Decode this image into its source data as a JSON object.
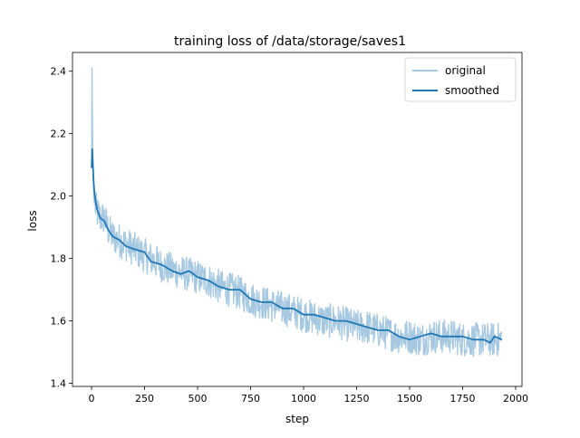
{
  "chart_data": {
    "type": "line",
    "title": "training loss of /data/storage/saves1",
    "xlabel": "step",
    "ylabel": "loss",
    "xlim": [
      -90,
      2030
    ],
    "ylim": [
      1.39,
      2.46
    ],
    "xticks": [
      0,
      250,
      500,
      750,
      1000,
      1250,
      1500,
      1750,
      2000
    ],
    "yticks": [
      1.4,
      1.6,
      1.8,
      2.0,
      2.2,
      2.4
    ],
    "ytick_labels": [
      "1.4",
      "1.6",
      "1.8",
      "2.0",
      "2.2",
      "2.4"
    ],
    "grid": false,
    "legend_position": "top-right",
    "series": [
      {
        "name": "original",
        "color": "#a6c8e0",
        "style": "noisy raw values",
        "points": [
          [
            0,
            2.1
          ],
          [
            2,
            2.41
          ],
          [
            5,
            2.15
          ],
          [
            8,
            2.05
          ],
          [
            12,
            1.98
          ],
          [
            25,
            1.95
          ],
          [
            40,
            1.93
          ],
          [
            60,
            1.93
          ],
          [
            80,
            1.89
          ],
          [
            100,
            1.87
          ],
          [
            150,
            1.85
          ],
          [
            200,
            1.83
          ],
          [
            250,
            1.81
          ],
          [
            300,
            1.79
          ],
          [
            350,
            1.77
          ],
          [
            400,
            1.76
          ],
          [
            450,
            1.75
          ],
          [
            500,
            1.74
          ],
          [
            550,
            1.73
          ],
          [
            600,
            1.71
          ],
          [
            650,
            1.7
          ],
          [
            700,
            1.69
          ],
          [
            750,
            1.67
          ],
          [
            800,
            1.66
          ],
          [
            850,
            1.65
          ],
          [
            900,
            1.64
          ],
          [
            950,
            1.63
          ],
          [
            1000,
            1.62
          ],
          [
            1050,
            1.61
          ],
          [
            1100,
            1.6
          ],
          [
            1150,
            1.6
          ],
          [
            1200,
            1.59
          ],
          [
            1250,
            1.58
          ],
          [
            1300,
            1.58
          ],
          [
            1350,
            1.57
          ],
          [
            1400,
            1.56
          ],
          [
            1450,
            1.55
          ],
          [
            1500,
            1.55
          ],
          [
            1550,
            1.54
          ],
          [
            1600,
            1.55
          ],
          [
            1650,
            1.55
          ],
          [
            1700,
            1.55
          ],
          [
            1750,
            1.54
          ],
          [
            1800,
            1.54
          ],
          [
            1850,
            1.54
          ],
          [
            1900,
            1.54
          ],
          [
            1935,
            1.54
          ]
        ],
        "noise_amplitude": 0.055
      },
      {
        "name": "smoothed",
        "color": "#1f77b4",
        "points": [
          [
            0,
            2.09
          ],
          [
            3,
            2.15
          ],
          [
            6,
            2.1
          ],
          [
            10,
            2.04
          ],
          [
            15,
            2.0
          ],
          [
            25,
            1.96
          ],
          [
            40,
            1.93
          ],
          [
            60,
            1.92
          ],
          [
            80,
            1.89
          ],
          [
            100,
            1.87
          ],
          [
            130,
            1.86
          ],
          [
            160,
            1.84
          ],
          [
            200,
            1.83
          ],
          [
            250,
            1.82
          ],
          [
            280,
            1.79
          ],
          [
            330,
            1.78
          ],
          [
            380,
            1.76
          ],
          [
            420,
            1.75
          ],
          [
            460,
            1.76
          ],
          [
            500,
            1.74
          ],
          [
            550,
            1.73
          ],
          [
            600,
            1.71
          ],
          [
            650,
            1.7
          ],
          [
            700,
            1.7
          ],
          [
            750,
            1.67
          ],
          [
            800,
            1.66
          ],
          [
            850,
            1.66
          ],
          [
            900,
            1.64
          ],
          [
            950,
            1.64
          ],
          [
            1000,
            1.62
          ],
          [
            1050,
            1.62
          ],
          [
            1100,
            1.61
          ],
          [
            1150,
            1.6
          ],
          [
            1200,
            1.6
          ],
          [
            1250,
            1.59
          ],
          [
            1300,
            1.58
          ],
          [
            1350,
            1.57
          ],
          [
            1400,
            1.57
          ],
          [
            1450,
            1.55
          ],
          [
            1500,
            1.54
          ],
          [
            1550,
            1.55
          ],
          [
            1600,
            1.56
          ],
          [
            1650,
            1.55
          ],
          [
            1700,
            1.55
          ],
          [
            1750,
            1.55
          ],
          [
            1800,
            1.54
          ],
          [
            1850,
            1.54
          ],
          [
            1880,
            1.53
          ],
          [
            1900,
            1.55
          ],
          [
            1935,
            1.54
          ]
        ]
      }
    ]
  }
}
